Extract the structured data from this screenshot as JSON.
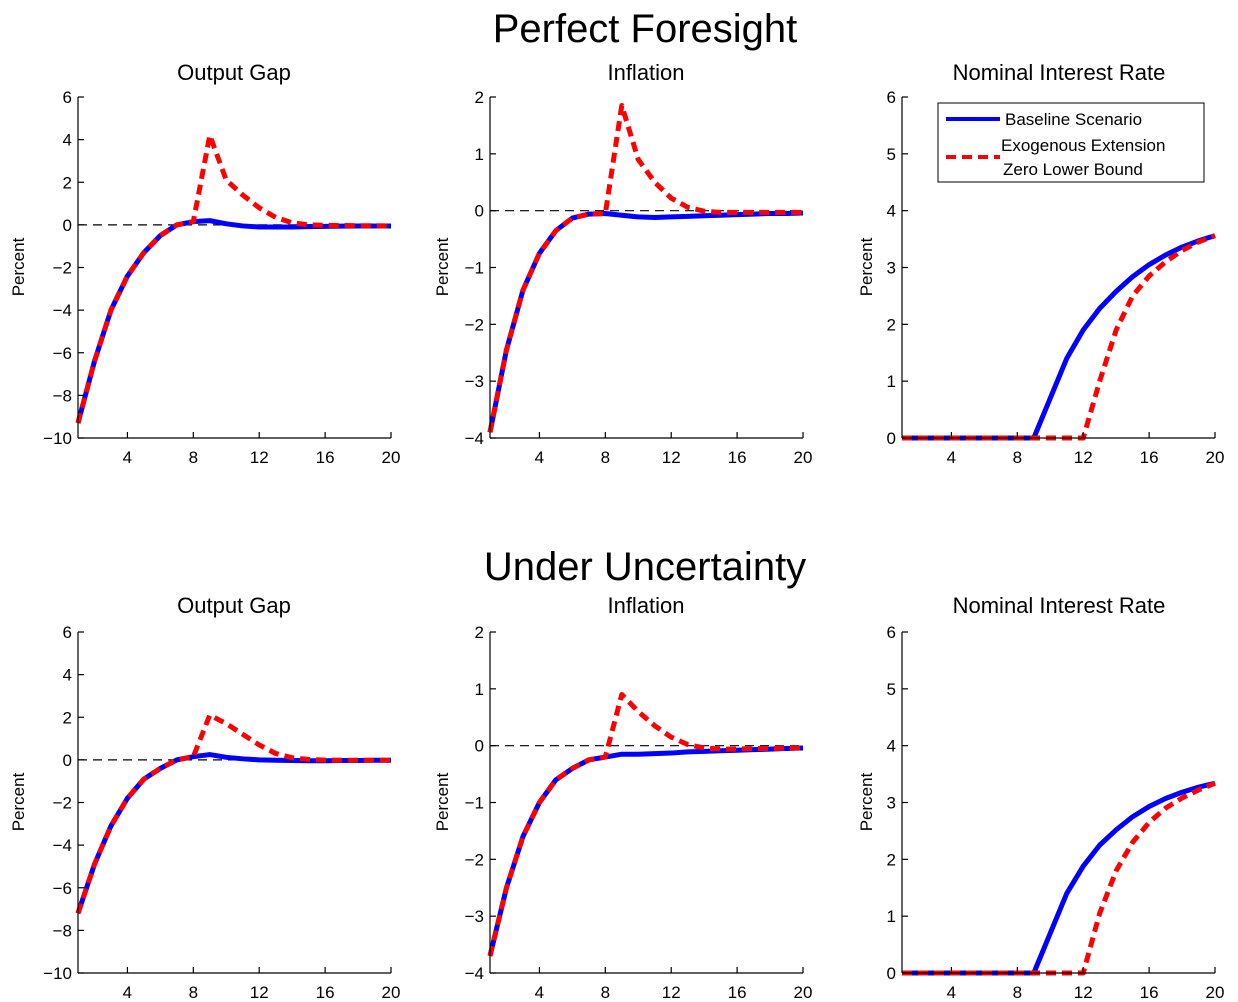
{
  "figure": {
    "row_titles": [
      "Perfect Foresight",
      "Under Uncertainty"
    ]
  },
  "legend": {
    "entries": [
      "Baseline Scenario",
      "Exogenous Extension",
      "Zero Lower Bound"
    ]
  },
  "colors": {
    "baseline": "#0000ff",
    "extension": "#ff0000",
    "reference_line": "#000000"
  },
  "chart_data": [
    {
      "type": "line",
      "row": "Perfect Foresight",
      "title": "Output Gap",
      "xlabel": "",
      "ylabel": "Percent",
      "xlim": [
        1,
        20
      ],
      "ylim": [
        -10,
        6
      ],
      "xticks": [
        4,
        8,
        12,
        16,
        20
      ],
      "yticks": [
        -10,
        -8,
        -6,
        -4,
        -2,
        0,
        2,
        4,
        6
      ],
      "hline": 0,
      "x": [
        1,
        2,
        3,
        4,
        5,
        6,
        7,
        8,
        9,
        10,
        11,
        12,
        13,
        14,
        15,
        16,
        17,
        18,
        19,
        20
      ],
      "series": [
        {
          "name": "Baseline Scenario",
          "values": [
            -9.3,
            -6.4,
            -4.0,
            -2.4,
            -1.3,
            -0.5,
            0.0,
            0.15,
            0.2,
            0.05,
            -0.05,
            -0.1,
            -0.1,
            -0.1,
            -0.08,
            -0.07,
            -0.06,
            -0.05,
            -0.05,
            -0.05
          ]
        },
        {
          "name": "Exogenous Extension Zero Lower Bound",
          "values": [
            -9.3,
            -6.4,
            -4.0,
            -2.4,
            -1.3,
            -0.5,
            0.0,
            0.15,
            4.2,
            2.1,
            1.4,
            0.8,
            0.35,
            0.1,
            0.0,
            -0.02,
            -0.03,
            -0.04,
            -0.04,
            -0.05
          ]
        }
      ]
    },
    {
      "type": "line",
      "row": "Perfect Foresight",
      "title": "Inflation",
      "xlabel": "",
      "ylabel": "Percent",
      "xlim": [
        1,
        20
      ],
      "ylim": [
        -4,
        2
      ],
      "xticks": [
        4,
        8,
        12,
        16,
        20
      ],
      "yticks": [
        -4,
        -3,
        -2,
        -1,
        0,
        1,
        2
      ],
      "hline": 0,
      "x": [
        1,
        2,
        3,
        4,
        5,
        6,
        7,
        8,
        9,
        10,
        11,
        12,
        13,
        14,
        15,
        16,
        17,
        18,
        19,
        20
      ],
      "series": [
        {
          "name": "Baseline Scenario",
          "values": [
            -3.9,
            -2.45,
            -1.4,
            -0.75,
            -0.35,
            -0.13,
            -0.06,
            -0.05,
            -0.08,
            -0.11,
            -0.12,
            -0.11,
            -0.1,
            -0.09,
            -0.08,
            -0.07,
            -0.06,
            -0.05,
            -0.05,
            -0.04
          ]
        },
        {
          "name": "Exogenous Extension Zero Lower Bound",
          "values": [
            -3.9,
            -2.45,
            -1.4,
            -0.75,
            -0.35,
            -0.13,
            -0.06,
            -0.05,
            1.85,
            0.9,
            0.5,
            0.22,
            0.06,
            -0.01,
            -0.03,
            -0.03,
            -0.03,
            -0.03,
            -0.03,
            -0.03
          ]
        }
      ]
    },
    {
      "type": "line",
      "row": "Perfect Foresight",
      "title": "Nominal Interest Rate",
      "xlabel": "",
      "ylabel": "Percent",
      "xlim": [
        1,
        20
      ],
      "ylim": [
        0,
        6
      ],
      "xticks": [
        4,
        8,
        12,
        16,
        20
      ],
      "yticks": [
        0,
        1,
        2,
        3,
        4,
        5,
        6
      ],
      "hline": null,
      "legend": "top-right",
      "x": [
        1,
        2,
        3,
        4,
        5,
        6,
        7,
        8,
        9,
        10,
        11,
        12,
        13,
        14,
        15,
        16,
        17,
        18,
        19,
        20
      ],
      "series": [
        {
          "name": "Baseline Scenario",
          "values": [
            0,
            0,
            0,
            0,
            0,
            0,
            0,
            0,
            0,
            0.7,
            1.4,
            1.9,
            2.28,
            2.58,
            2.84,
            3.05,
            3.22,
            3.36,
            3.47,
            3.56
          ]
        },
        {
          "name": "Exogenous Extension Zero Lower Bound",
          "values": [
            0,
            0,
            0,
            0,
            0,
            0,
            0,
            0,
            0,
            0,
            0,
            0,
            1.0,
            1.9,
            2.5,
            2.85,
            3.1,
            3.3,
            3.45,
            3.56
          ]
        }
      ]
    },
    {
      "type": "line",
      "row": "Under Uncertainty",
      "title": "Output Gap",
      "xlabel": "",
      "ylabel": "Percent",
      "xlim": [
        1,
        20
      ],
      "ylim": [
        -10,
        6
      ],
      "xticks": [
        4,
        8,
        12,
        16,
        20
      ],
      "yticks": [
        -10,
        -8,
        -6,
        -4,
        -2,
        0,
        2,
        4,
        6
      ],
      "hline": 0,
      "x": [
        1,
        2,
        3,
        4,
        5,
        6,
        7,
        8,
        9,
        10,
        11,
        12,
        13,
        14,
        15,
        16,
        17,
        18,
        19,
        20
      ],
      "series": [
        {
          "name": "Baseline Scenario",
          "values": [
            -7.2,
            -4.9,
            -3.1,
            -1.8,
            -0.9,
            -0.4,
            0.0,
            0.15,
            0.25,
            0.12,
            0.05,
            0.0,
            -0.02,
            -0.03,
            -0.04,
            -0.04,
            -0.03,
            -0.03,
            -0.02,
            -0.02
          ]
        },
        {
          "name": "Exogenous Extension Zero Lower Bound",
          "values": [
            -7.2,
            -4.9,
            -3.1,
            -1.8,
            -0.9,
            -0.4,
            0.0,
            0.15,
            2.1,
            1.7,
            1.2,
            0.7,
            0.3,
            0.1,
            0.02,
            -0.01,
            -0.02,
            -0.02,
            -0.02,
            -0.02
          ]
        }
      ]
    },
    {
      "type": "line",
      "row": "Under Uncertainty",
      "title": "Inflation",
      "xlabel": "",
      "ylabel": "Percent",
      "xlim": [
        1,
        20
      ],
      "ylim": [
        -4,
        2
      ],
      "xticks": [
        4,
        8,
        12,
        16,
        20
      ],
      "yticks": [
        -4,
        -3,
        -2,
        -1,
        0,
        1,
        2
      ],
      "hline": 0,
      "x": [
        1,
        2,
        3,
        4,
        5,
        6,
        7,
        8,
        9,
        10,
        11,
        12,
        13,
        14,
        15,
        16,
        17,
        18,
        19,
        20
      ],
      "series": [
        {
          "name": "Baseline Scenario",
          "values": [
            -3.7,
            -2.5,
            -1.6,
            -1.0,
            -0.6,
            -0.4,
            -0.25,
            -0.2,
            -0.15,
            -0.15,
            -0.14,
            -0.13,
            -0.11,
            -0.1,
            -0.09,
            -0.08,
            -0.07,
            -0.06,
            -0.05,
            -0.04
          ]
        },
        {
          "name": "Exogenous Extension Zero Lower Bound",
          "values": [
            -3.7,
            -2.5,
            -1.6,
            -1.0,
            -0.6,
            -0.4,
            -0.25,
            -0.2,
            0.9,
            0.6,
            0.35,
            0.15,
            0.02,
            -0.04,
            -0.06,
            -0.06,
            -0.05,
            -0.05,
            -0.04,
            -0.04
          ]
        }
      ]
    },
    {
      "type": "line",
      "row": "Under Uncertainty",
      "title": "Nominal Interest Rate",
      "xlabel": "",
      "ylabel": "Percent",
      "xlim": [
        1,
        20
      ],
      "ylim": [
        0,
        6
      ],
      "xticks": [
        4,
        8,
        12,
        16,
        20
      ],
      "yticks": [
        0,
        1,
        2,
        3,
        4,
        5,
        6
      ],
      "hline": null,
      "x": [
        1,
        2,
        3,
        4,
        5,
        6,
        7,
        8,
        9,
        10,
        11,
        12,
        13,
        14,
        15,
        16,
        17,
        18,
        19,
        20
      ],
      "series": [
        {
          "name": "Baseline Scenario",
          "values": [
            0,
            0,
            0,
            0,
            0,
            0,
            0,
            0,
            0,
            0.7,
            1.4,
            1.88,
            2.25,
            2.52,
            2.75,
            2.93,
            3.07,
            3.18,
            3.27,
            3.34
          ]
        },
        {
          "name": "Exogenous Extension Zero Lower Bound",
          "values": [
            0,
            0,
            0,
            0,
            0,
            0,
            0,
            0,
            0,
            0,
            0,
            0,
            1.05,
            1.8,
            2.3,
            2.65,
            2.9,
            3.08,
            3.22,
            3.34
          ]
        }
      ]
    }
  ]
}
